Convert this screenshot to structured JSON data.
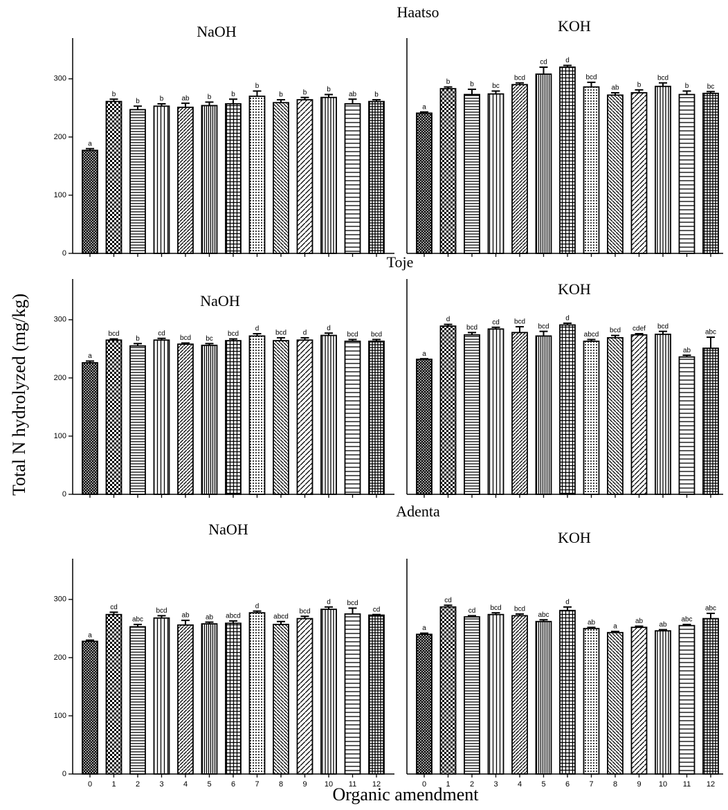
{
  "row_titles": [
    "Haatso",
    "Toje",
    "Adenta"
  ],
  "ylabel": "Total N hydrolyzed (mg/kg)",
  "xlabel": "Organic amendment",
  "chart_data": [
    {
      "type": "bar",
      "title": "NaOH",
      "ylim": [
        0,
        370
      ],
      "yticks": [
        0,
        100,
        200,
        300
      ],
      "values": [
        177,
        261,
        247,
        253,
        251,
        254,
        257,
        270,
        259,
        264,
        268,
        257,
        261
      ],
      "errors": [
        3,
        4,
        6,
        4,
        7,
        6,
        8,
        9,
        5,
        4,
        5,
        8,
        3
      ],
      "letters": [
        "a",
        "b",
        "b",
        "b",
        "ab",
        "b",
        "b",
        "b",
        "b",
        "b",
        "b",
        "ab",
        "b"
      ]
    },
    {
      "type": "bar",
      "title": "KOH",
      "ylim": [
        0,
        370
      ],
      "values": [
        241,
        283,
        273,
        274,
        290,
        308,
        320,
        286,
        272,
        276,
        287,
        273,
        275
      ],
      "errors": [
        2,
        3,
        9,
        5,
        3,
        12,
        3,
        8,
        4,
        5,
        6,
        6,
        3
      ],
      "letters": [
        "a",
        "b",
        "b",
        "bc",
        "bcd",
        "cd",
        "d",
        "bcd",
        "ab",
        "b",
        "bcd",
        "b",
        "bc"
      ]
    },
    {
      "type": "bar",
      "title": "NaOH",
      "ylim": [
        0,
        370
      ],
      "yticks": [
        0,
        100,
        200,
        300
      ],
      "values": [
        226,
        265,
        255,
        265,
        258,
        256,
        264,
        272,
        264,
        265,
        273,
        263,
        263
      ],
      "errors": [
        3,
        2,
        4,
        3,
        2,
        3,
        3,
        4,
        5,
        4,
        4,
        3,
        3
      ],
      "letters": [
        "a",
        "bcd",
        "b",
        "cd",
        "bcd",
        "bc",
        "bcd",
        "d",
        "bcd",
        "d",
        "d",
        "bcd",
        "bcd"
      ]
    },
    {
      "type": "bar",
      "title": "KOH",
      "ylim": [
        0,
        370
      ],
      "values": [
        232,
        289,
        274,
        284,
        278,
        272,
        291,
        263,
        269,
        274,
        275,
        236,
        251
      ],
      "errors": [
        1,
        3,
        4,
        3,
        10,
        8,
        3,
        3,
        4,
        2,
        5,
        3,
        19
      ],
      "letters": [
        "a",
        "d",
        "bcd",
        "cd",
        "bcd",
        "bcd",
        "d",
        "abcd",
        "bcd",
        "cdef",
        "bcd",
        "ab",
        "abc"
      ]
    },
    {
      "type": "bar",
      "title": "NaOH",
      "ylim": [
        0,
        370
      ],
      "yticks": [
        0,
        100,
        200,
        300
      ],
      "categories": [
        "0",
        "1",
        "2",
        "3",
        "4",
        "5",
        "6",
        "7",
        "8",
        "9",
        "10",
        "11",
        "12"
      ],
      "values": [
        228,
        274,
        253,
        268,
        256,
        258,
        259,
        277,
        257,
        267,
        283,
        275,
        273
      ],
      "errors": [
        2,
        4,
        4,
        4,
        8,
        3,
        4,
        3,
        5,
        4,
        4,
        10,
        1
      ],
      "letters": [
        "a",
        "cd",
        "abc",
        "bcd",
        "ab",
        "ab",
        "abcd",
        "d",
        "abcd",
        "bcd",
        "d",
        "bcd",
        "cd"
      ]
    },
    {
      "type": "bar",
      "title": "KOH",
      "ylim": [
        0,
        370
      ],
      "categories": [
        "0",
        "1",
        "2",
        "3",
        "4",
        "5",
        "6",
        "7",
        "8",
        "9",
        "10",
        "11",
        "12"
      ],
      "values": [
        240,
        287,
        270,
        274,
        272,
        262,
        281,
        250,
        243,
        252,
        246,
        255,
        267
      ],
      "errors": [
        2,
        3,
        2,
        3,
        3,
        3,
        6,
        2,
        2,
        2,
        2,
        2,
        9
      ],
      "letters": [
        "a",
        "cd",
        "cd",
        "bcd",
        "bcd",
        "abc",
        "d",
        "ab",
        "a",
        "ab",
        "ab",
        "abc",
        "abc"
      ]
    }
  ]
}
